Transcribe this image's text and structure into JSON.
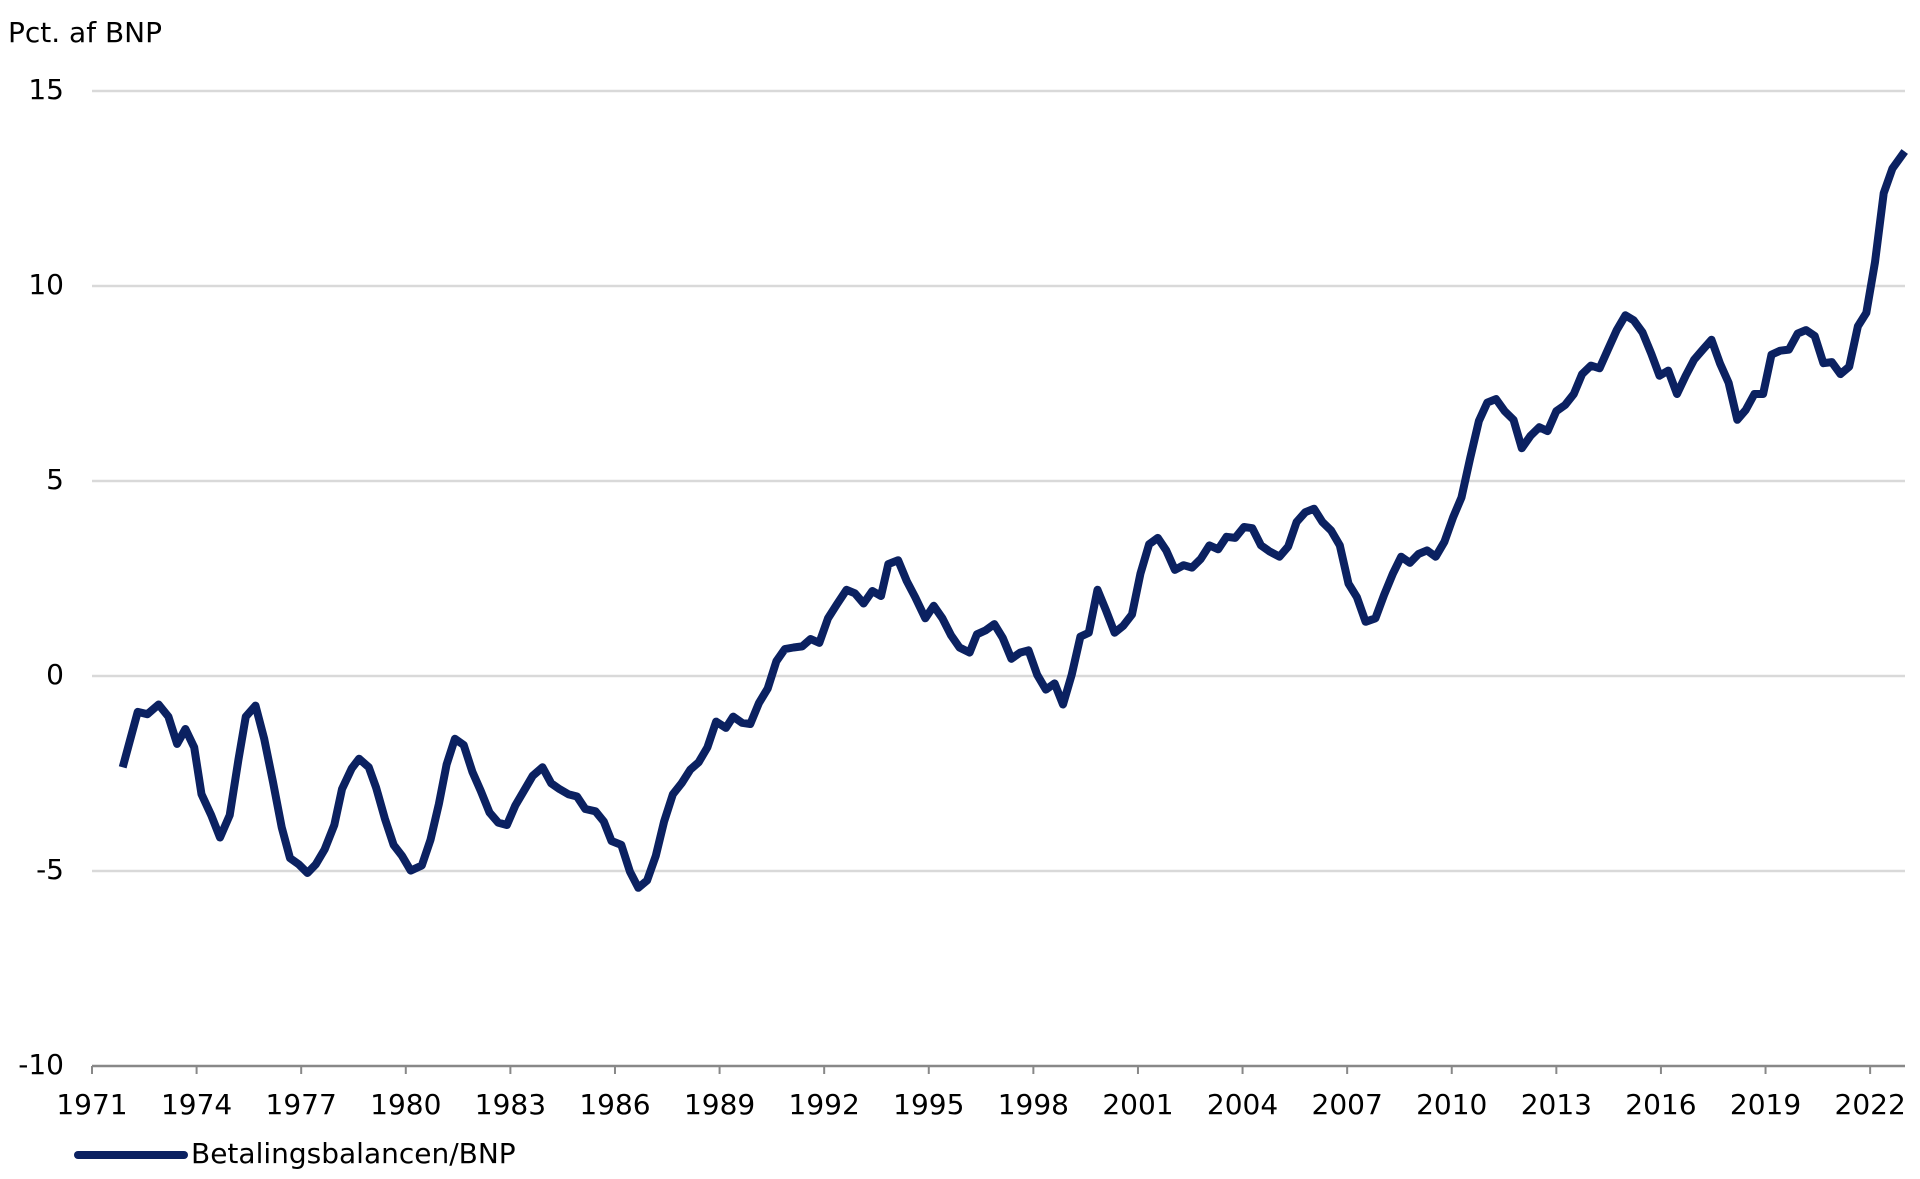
{
  "chart_data": {
    "type": "line",
    "y_axis_label": "Pct. af BNP",
    "x": [
      1971.88,
      1972.31,
      1972.59,
      1972.91,
      1973.19,
      1973.44,
      1973.68,
      1973.93,
      1974.14,
      1974.42,
      1974.67,
      1974.95,
      1975.2,
      1975.41,
      1975.69,
      1975.94,
      1976.19,
      1976.44,
      1976.68,
      1976.93,
      1977.18,
      1977.42,
      1977.67,
      1977.95,
      1978.17,
      1978.45,
      1978.66,
      1978.94,
      1979.15,
      1979.4,
      1979.65,
      1979.89,
      1980.14,
      1980.46,
      1980.71,
      1980.95,
      1981.17,
      1981.41,
      1981.66,
      1981.91,
      1982.15,
      1982.4,
      1982.65,
      1982.9,
      1983.14,
      1983.39,
      1983.64,
      1983.92,
      1984.17,
      1984.41,
      1984.66,
      1984.91,
      1985.15,
      1985.44,
      1985.68,
      1985.9,
      1986.18,
      1986.43,
      1986.67,
      1986.92,
      1987.17,
      1987.41,
      1987.66,
      1987.91,
      1988.16,
      1988.4,
      1988.65,
      1988.9,
      1989.18,
      1989.39,
      1989.64,
      1989.88,
      1990.13,
      1990.38,
      1990.63,
      1990.87,
      1991.12,
      1991.37,
      1991.61,
      1991.86,
      1992.11,
      1992.36,
      1992.64,
      1992.88,
      1993.13,
      1993.38,
      1993.63,
      1993.84,
      1994.12,
      1994.37,
      1994.61,
      1994.9,
      1995.14,
      1995.39,
      1995.64,
      1995.88,
      1996.17,
      1996.38,
      1996.63,
      1996.88,
      1997.12,
      1997.37,
      1997.62,
      1997.86,
      1998.11,
      1998.36,
      1998.61,
      1998.85,
      1999.1,
      1999.35,
      1999.59,
      1999.84,
      2000.09,
      2000.33,
      2000.58,
      2000.83,
      2001.07,
      2001.32,
      2001.57,
      2001.81,
      2002.06,
      2002.31,
      2002.55,
      2002.8,
      2003.05,
      2003.3,
      2003.54,
      2003.79,
      2004.04,
      2004.28,
      2004.53,
      2004.78,
      2005.06,
      2005.31,
      2005.55,
      2005.8,
      2006.05,
      2006.29,
      2006.54,
      2006.79,
      2007.04,
      2007.28,
      2007.53,
      2007.81,
      2008.06,
      2008.31,
      2008.55,
      2008.8,
      2009.05,
      2009.29,
      2009.54,
      2009.79,
      2010.04,
      2010.28,
      2010.53,
      2010.78,
      2011.02,
      2011.27,
      2011.52,
      2011.77,
      2012.01,
      2012.26,
      2012.51,
      2012.75,
      2013.0,
      2013.25,
      2013.5,
      2013.74,
      2013.99,
      2014.24,
      2014.48,
      2014.73,
      2014.98,
      2015.22,
      2015.47,
      2015.72,
      2015.96,
      2016.21,
      2016.46,
      2016.71,
      2016.95,
      2017.2,
      2017.45,
      2017.69,
      2017.94,
      2018.19,
      2018.43,
      2018.68,
      2018.93,
      2019.17,
      2019.42,
      2019.67,
      2019.92,
      2020.16,
      2020.41,
      2020.66,
      2020.9,
      2021.15,
      2021.4,
      2021.65,
      2021.89,
      2022.14,
      2022.39,
      2022.64,
      2022.99
    ],
    "series": [
      {
        "name": "Betalingsbalancen/BNP",
        "color": "#0b2161",
        "values": [
          -2.34,
          -0.92,
          -0.98,
          -0.73,
          -1.04,
          -1.74,
          -1.36,
          -1.83,
          -3.03,
          -3.57,
          -4.14,
          -3.57,
          -2.15,
          -1.04,
          -0.76,
          -1.61,
          -2.72,
          -3.88,
          -4.67,
          -4.83,
          -5.05,
          -4.83,
          -4.45,
          -3.82,
          -2.9,
          -2.37,
          -2.12,
          -2.34,
          -2.87,
          -3.66,
          -4.33,
          -4.61,
          -4.99,
          -4.86,
          -4.2,
          -3.28,
          -2.27,
          -1.61,
          -1.77,
          -2.46,
          -2.94,
          -3.5,
          -3.76,
          -3.82,
          -3.32,
          -2.94,
          -2.56,
          -2.34,
          -2.75,
          -2.9,
          -3.03,
          -3.09,
          -3.41,
          -3.47,
          -3.73,
          -4.23,
          -4.33,
          -5.02,
          -5.43,
          -5.24,
          -4.61,
          -3.73,
          -3.03,
          -2.75,
          -2.4,
          -2.21,
          -1.83,
          -1.17,
          -1.33,
          -1.04,
          -1.2,
          -1.23,
          -0.69,
          -0.32,
          0.38,
          0.69,
          0.73,
          0.76,
          0.95,
          0.85,
          1.48,
          1.83,
          2.21,
          2.12,
          1.86,
          2.18,
          2.05,
          2.87,
          2.97,
          2.43,
          2.02,
          1.48,
          1.8,
          1.48,
          1.04,
          0.73,
          0.6,
          1.07,
          1.17,
          1.33,
          0.98,
          0.44,
          0.6,
          0.66,
          0.03,
          -0.35,
          -0.19,
          -0.73,
          0.03,
          1.01,
          1.11,
          2.21,
          1.67,
          1.11,
          1.29,
          1.58,
          2.62,
          3.38,
          3.54,
          3.22,
          2.72,
          2.84,
          2.78,
          3.0,
          3.35,
          3.25,
          3.57,
          3.54,
          3.82,
          3.79,
          3.35,
          3.19,
          3.06,
          3.32,
          3.95,
          4.2,
          4.29,
          3.95,
          3.73,
          3.35,
          2.37,
          2.02,
          1.39,
          1.48,
          2.08,
          2.62,
          3.06,
          2.9,
          3.13,
          3.22,
          3.06,
          3.44,
          4.07,
          4.58,
          5.59,
          6.54,
          7.01,
          7.1,
          6.79,
          6.57,
          5.84,
          6.16,
          6.38,
          6.28,
          6.79,
          6.95,
          7.23,
          7.74,
          7.96,
          7.89,
          8.37,
          8.87,
          9.25,
          9.12,
          8.81,
          8.27,
          7.7,
          7.83,
          7.23,
          7.7,
          8.11,
          8.37,
          8.62,
          8.02,
          7.52,
          6.57,
          6.82,
          7.23,
          7.23,
          8.24,
          8.34,
          8.37,
          8.78,
          8.87,
          8.72,
          8.02,
          8.05,
          7.74,
          7.93,
          8.97,
          9.31,
          10.61,
          12.38,
          13.01,
          13.45
        ]
      }
    ],
    "xlim": [
      1971,
      2023
    ],
    "xticks": [
      1971,
      1974,
      1977,
      1980,
      1983,
      1986,
      1989,
      1992,
      1995,
      1998,
      2001,
      2004,
      2007,
      2010,
      2013,
      2016,
      2019,
      2022
    ],
    "ylim": [
      -10,
      15
    ],
    "yticks": [
      -10,
      -5,
      0,
      5,
      10,
      15
    ],
    "grid": true,
    "legend": "bottom-left"
  }
}
